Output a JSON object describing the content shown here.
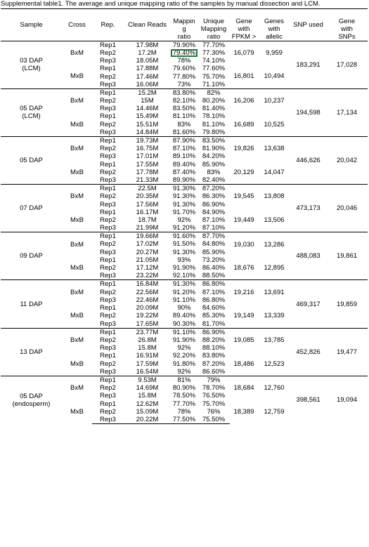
{
  "title": "Supplemental table1. The average and unique mapping ratio of the samples by manual dissection and LCM.",
  "headers": {
    "sample": "Sample",
    "cross": "Cross",
    "rep": "Rep.",
    "clean_reads": "Clean Reads",
    "mapping_ratio": [
      "Mappin",
      "g",
      "ratio"
    ],
    "unique_mapping_ratio": [
      "Unique",
      "Mapping",
      "ratio"
    ],
    "gene_with_fpkm": [
      "Gene",
      "with",
      "FPKM >"
    ],
    "genes_with_allelic": [
      "Genes",
      "with",
      "allelic"
    ],
    "snp_used": "SNP used",
    "gene_with_snps": [
      "Gene",
      "with",
      "SNPs"
    ]
  },
  "selected_cell": "03 DAP BxM Rep2 mapping ratio",
  "samples": [
    {
      "name": [
        "03 DAP",
        "(LCM)"
      ],
      "snp_used": "183,291",
      "gene_with_snps": "17,028",
      "crosses": [
        {
          "cross": "BxM",
          "gene_fpkm": "16,079",
          "genes_allelic": "9,959",
          "reps": [
            {
              "rep": "Rep1",
              "reads": "17.98M",
              "map": "79.90%",
              "uniq": "77.70%"
            },
            {
              "rep": "Rep2",
              "reads": "17.2M",
              "map": "79.40%",
              "uniq": "77.30%"
            },
            {
              "rep": "Rep3",
              "reads": "18.05M",
              "map": "78%",
              "uniq": "74.10%"
            }
          ]
        },
        {
          "cross": "MxB",
          "gene_fpkm": "16,801",
          "genes_allelic": "10,494",
          "reps": [
            {
              "rep": "Rep1",
              "reads": "17.88M",
              "map": "79.60%",
              "uniq": "77.60%"
            },
            {
              "rep": "Rep2",
              "reads": "17.46M",
              "map": "77.80%",
              "uniq": "75.70%"
            },
            {
              "rep": "Rep3",
              "reads": "16.06M",
              "map": "73%",
              "uniq": "71.10%"
            }
          ]
        }
      ]
    },
    {
      "name": [
        "05 DAP",
        "(LCM)"
      ],
      "snp_used": "194,598",
      "gene_with_snps": "17,134",
      "crosses": [
        {
          "cross": "BxM",
          "gene_fpkm": "16,206",
          "genes_allelic": "10,237",
          "reps": [
            {
              "rep": "Rep1",
              "reads": "15.2M",
              "map": "83.80%",
              "uniq": "82%"
            },
            {
              "rep": "Rep2",
              "reads": "15M",
              "map": "82.10%",
              "uniq": "80.20%"
            },
            {
              "rep": "Rep3",
              "reads": "14.46M",
              "map": "83.50%",
              "uniq": "81.40%"
            }
          ]
        },
        {
          "cross": "MxB",
          "gene_fpkm": "16,689",
          "genes_allelic": "10,525",
          "reps": [
            {
              "rep": "Rep1",
              "reads": "15.49M",
              "map": "81.10%",
              "uniq": "78.10%"
            },
            {
              "rep": "Rep2",
              "reads": "15.51M",
              "map": "83%",
              "uniq": "81.10%"
            },
            {
              "rep": "Rep3",
              "reads": "14.84M",
              "map": "81.60%",
              "uniq": "79.80%"
            }
          ]
        }
      ]
    },
    {
      "name": [
        "05 DAP"
      ],
      "snp_used": "446,626",
      "gene_with_snps": "20,042",
      "crosses": [
        {
          "cross": "BxM",
          "gene_fpkm": "19,826",
          "genes_allelic": "13,638",
          "reps": [
            {
              "rep": "Rep1",
              "reads": "19.73M",
              "map": "87.90%",
              "uniq": "83.50%"
            },
            {
              "rep": "Rep2",
              "reads": "16.75M",
              "map": "87.10%",
              "uniq": "81.90%"
            },
            {
              "rep": "Rep3",
              "reads": "17.01M",
              "map": "89.10%",
              "uniq": "84.20%"
            }
          ]
        },
        {
          "cross": "MxB",
          "gene_fpkm": "20,129",
          "genes_allelic": "14,047",
          "reps": [
            {
              "rep": "Rep1",
              "reads": "17.55M",
              "map": "89.40%",
              "uniq": "85.90%"
            },
            {
              "rep": "Rep2",
              "reads": "17.78M",
              "map": "87.40%",
              "uniq": "83%"
            },
            {
              "rep": "Rep3",
              "reads": "21.33M",
              "map": "89.90%",
              "uniq": "82.40%"
            }
          ]
        }
      ]
    },
    {
      "name": [
        "07 DAP"
      ],
      "snp_used": "473,173",
      "gene_with_snps": "20,046",
      "crosses": [
        {
          "cross": "BxM",
          "gene_fpkm": "19,545",
          "genes_allelic": "13,808",
          "reps": [
            {
              "rep": "Rep1",
              "reads": "22.5M",
              "map": "91.30%",
              "uniq": "87.20%"
            },
            {
              "rep": "Rep2",
              "reads": "20.35M",
              "map": "91.30%",
              "uniq": "86.30%"
            },
            {
              "rep": "Rep3",
              "reads": "17.56M",
              "map": "91.30%",
              "uniq": "86.90%"
            }
          ]
        },
        {
          "cross": "MxB",
          "gene_fpkm": "19,449",
          "genes_allelic": "13,506",
          "reps": [
            {
              "rep": "Rep1",
              "reads": "16.17M",
              "map": "91.70%",
              "uniq": "84.90%"
            },
            {
              "rep": "Rep2",
              "reads": "18.7M",
              "map": "92%",
              "uniq": "87.10%"
            },
            {
              "rep": "Rep3",
              "reads": "21.99M",
              "map": "91.20%",
              "uniq": "87.10%"
            }
          ]
        }
      ]
    },
    {
      "name": [
        "09 DAP"
      ],
      "snp_used": "488,083",
      "gene_with_snps": "19,861",
      "crosses": [
        {
          "cross": "BxM",
          "gene_fpkm": "19,030",
          "genes_allelic": "13,286",
          "reps": [
            {
              "rep": "Rep1",
              "reads": "19.66M",
              "map": "91.60%",
              "uniq": "87.70%"
            },
            {
              "rep": "Rep2",
              "reads": "17.02M",
              "map": "91.50%",
              "uniq": "84.80%"
            },
            {
              "rep": "Rep3",
              "reads": "20.27M",
              "map": "91.30%",
              "uniq": "85.90%"
            }
          ]
        },
        {
          "cross": "MxB",
          "gene_fpkm": "18,676",
          "genes_allelic": "12,895",
          "reps": [
            {
              "rep": "Rep1",
              "reads": "21.05M",
              "map": "93%",
              "uniq": "73.20%"
            },
            {
              "rep": "Rep2",
              "reads": "17.12M",
              "map": "91.90%",
              "uniq": "86.40%"
            },
            {
              "rep": "Rep3",
              "reads": "23.22M",
              "map": "92.10%",
              "uniq": "88.50%"
            }
          ]
        }
      ]
    },
    {
      "name": [
        "11 DAP"
      ],
      "snp_used": "469,317",
      "gene_with_snps": "19,859",
      "crosses": [
        {
          "cross": "BxM",
          "gene_fpkm": "19,216",
          "genes_allelic": "13,691",
          "reps": [
            {
              "rep": "Rep1",
              "reads": "16.84M",
              "map": "91.30%",
              "uniq": "86.80%"
            },
            {
              "rep": "Rep2",
              "reads": "22.56M",
              "map": "91.20%",
              "uniq": "87.10%"
            },
            {
              "rep": "Rep3",
              "reads": "22.46M",
              "map": "91.10%",
              "uniq": "86.80%"
            }
          ]
        },
        {
          "cross": "MxB",
          "gene_fpkm": "19,149",
          "genes_allelic": "13,339",
          "reps": [
            {
              "rep": "Rep1",
              "reads": "20.09M",
              "map": "90%",
              "uniq": "84.60%"
            },
            {
              "rep": "Rep2",
              "reads": "19.22M",
              "map": "89.40%",
              "uniq": "85.30%"
            },
            {
              "rep": "Rep3",
              "reads": "17.65M",
              "map": "90.30%",
              "uniq": "81.70%"
            }
          ]
        }
      ]
    },
    {
      "name": [
        "13 DAP"
      ],
      "snp_used": "452,826",
      "gene_with_snps": "19,477",
      "crosses": [
        {
          "cross": "BxM",
          "gene_fpkm": "19,085",
          "genes_allelic": "13,785",
          "reps": [
            {
              "rep": "Rep1",
              "reads": "23.77M",
              "map": "91.10%",
              "uniq": "86.90%"
            },
            {
              "rep": "Rep2",
              "reads": "26.8M",
              "map": "91.90%",
              "uniq": "88.20%"
            },
            {
              "rep": "Rep3",
              "reads": "15.8M",
              "map": "92%",
              "uniq": "88.10%"
            }
          ]
        },
        {
          "cross": "MxB",
          "gene_fpkm": "18,486",
          "genes_allelic": "12,523",
          "reps": [
            {
              "rep": "Rep1",
              "reads": "16.91M",
              "map": "92.20%",
              "uniq": "83.80%"
            },
            {
              "rep": "Rep2",
              "reads": "17.59M",
              "map": "91.80%",
              "uniq": "87.20%"
            },
            {
              "rep": "Rep3",
              "reads": "16.54M",
              "map": "92%",
              "uniq": "86.60%"
            }
          ]
        }
      ]
    },
    {
      "name": [
        "05 DAP",
        "(endosperm)"
      ],
      "snp_used": "398,561",
      "gene_with_snps": "19,094",
      "crosses": [
        {
          "cross": "BxM",
          "gene_fpkm": "18,684",
          "genes_allelic": "12,760",
          "reps": [
            {
              "rep": "Rep1",
              "reads": "9.53M",
              "map": "81%",
              "uniq": "79%"
            },
            {
              "rep": "Rep2",
              "reads": "14.69M",
              "map": "80.90%",
              "uniq": "78.70%"
            },
            {
              "rep": "Rep3",
              "reads": "15.8M",
              "map": "78.50%",
              "uniq": "76.50%"
            }
          ]
        },
        {
          "cross": "MxB",
          "gene_fpkm": "18,389",
          "genes_allelic": "12,759",
          "reps": [
            {
              "rep": "Rep1",
              "reads": "12.62M",
              "map": "77.70%",
              "uniq": "75.70%"
            },
            {
              "rep": "Rep2",
              "reads": "15.09M",
              "map": "78%",
              "uniq": "76%"
            },
            {
              "rep": "Rep3",
              "reads": "20.22M",
              "map": "77.50%",
              "uniq": "75.50%"
            }
          ]
        }
      ]
    }
  ]
}
